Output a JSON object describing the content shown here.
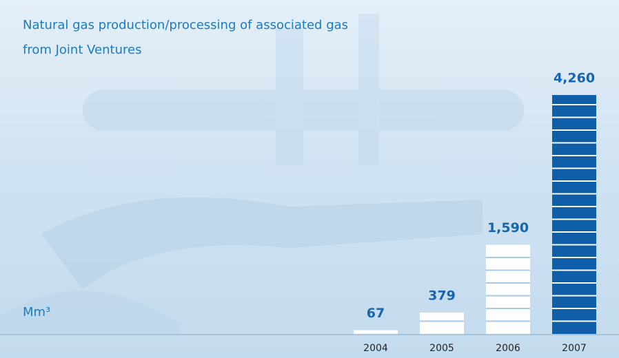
{
  "chart_data": {
    "type": "bar",
    "title_lines": [
      "Natural gas production/processing of associated gas",
      "from Joint Ventures"
    ],
    "unit": "Mm³",
    "categories": [
      "2004",
      "2005",
      "2006",
      "2007"
    ],
    "values": [
      67,
      379,
      1590,
      4260
    ],
    "value_labels": [
      "67",
      "379",
      "1,590",
      "4,260"
    ],
    "colors": [
      "#ffffff",
      "#ffffff",
      "#ffffff",
      "#0f5ea8"
    ]
  }
}
